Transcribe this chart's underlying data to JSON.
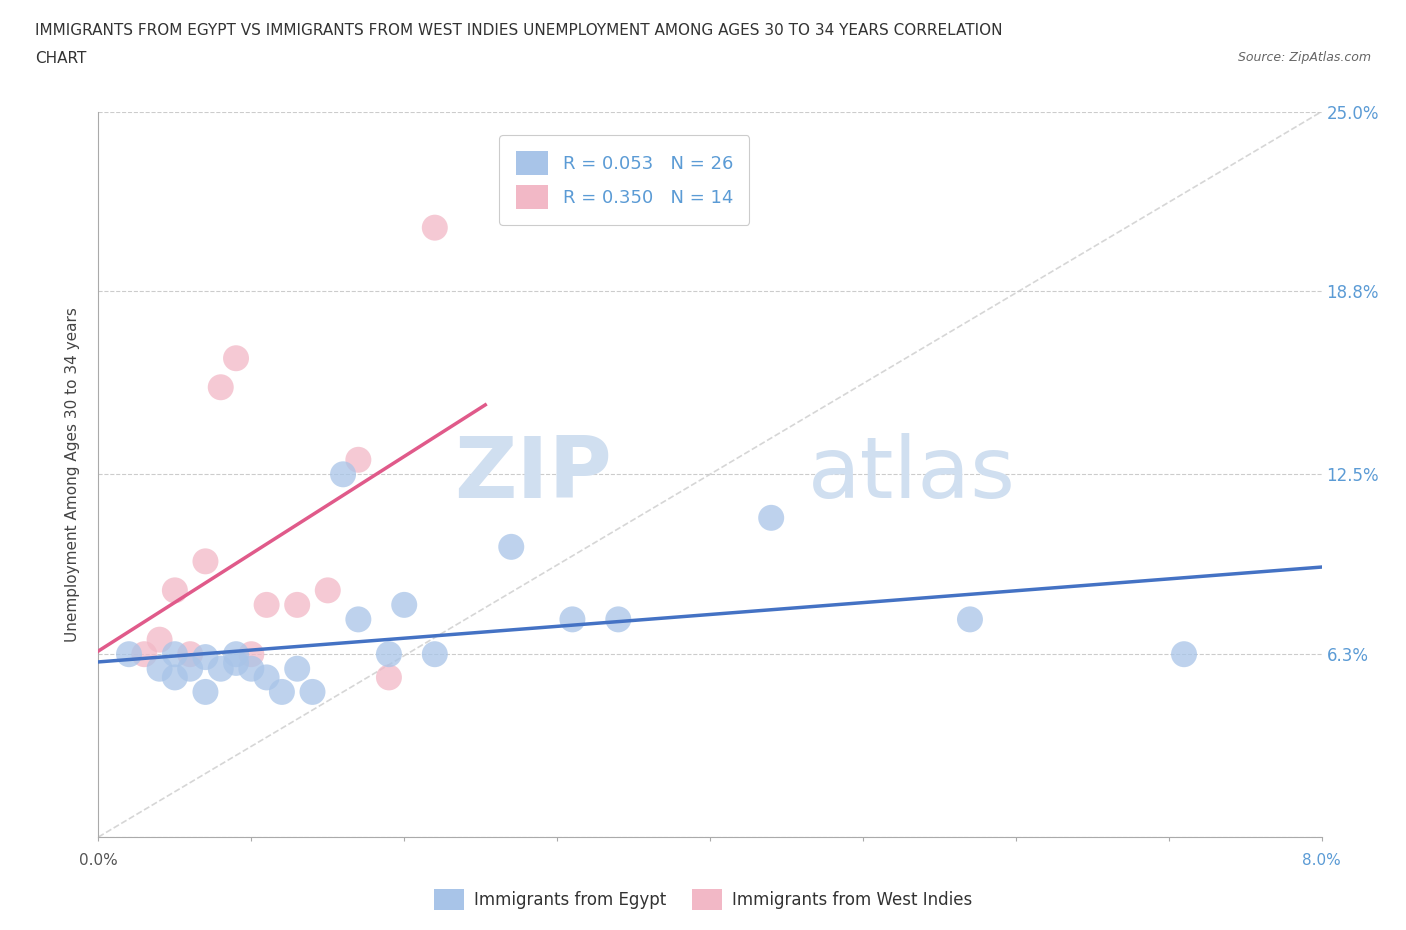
{
  "title_line1": "IMMIGRANTS FROM EGYPT VS IMMIGRANTS FROM WEST INDIES UNEMPLOYMENT AMONG AGES 30 TO 34 YEARS CORRELATION",
  "title_line2": "CHART",
  "source_text": "Source: ZipAtlas.com",
  "ylabel": "Unemployment Among Ages 30 to 34 years",
  "xmin": 0.0,
  "xmax": 0.08,
  "ymin": 0.0,
  "ymax": 0.25,
  "yticks": [
    0.0,
    0.063,
    0.125,
    0.188,
    0.25
  ],
  "ytick_labels_right": [
    "",
    "6.3%",
    "12.5%",
    "18.8%",
    "25.0%"
  ],
  "xtick_left_label": "0.0%",
  "xtick_right_label": "8.0%",
  "egypt_color": "#a8c4e8",
  "wi_color": "#f2b8c6",
  "egypt_R": 0.053,
  "egypt_N": 26,
  "wi_R": 0.35,
  "wi_N": 14,
  "egypt_trend_color": "#4472c4",
  "wi_trend_color": "#e05a8a",
  "diagonal_color": "#cccccc",
  "watermark_zip": "ZIP",
  "watermark_atlas": "atlas",
  "right_tick_color": "#5b9bd5",
  "egypt_x": [
    0.002,
    0.004,
    0.005,
    0.005,
    0.006,
    0.007,
    0.007,
    0.008,
    0.009,
    0.009,
    0.01,
    0.011,
    0.012,
    0.013,
    0.014,
    0.016,
    0.017,
    0.019,
    0.02,
    0.022,
    0.027,
    0.031,
    0.034,
    0.044,
    0.057,
    0.071
  ],
  "egypt_y": [
    0.063,
    0.058,
    0.055,
    0.063,
    0.058,
    0.05,
    0.062,
    0.058,
    0.063,
    0.06,
    0.058,
    0.055,
    0.05,
    0.058,
    0.05,
    0.125,
    0.075,
    0.063,
    0.08,
    0.063,
    0.1,
    0.075,
    0.075,
    0.11,
    0.075,
    0.063
  ],
  "wi_x": [
    0.003,
    0.004,
    0.005,
    0.006,
    0.007,
    0.008,
    0.009,
    0.01,
    0.011,
    0.013,
    0.015,
    0.017,
    0.019,
    0.022
  ],
  "wi_y": [
    0.063,
    0.068,
    0.085,
    0.063,
    0.095,
    0.155,
    0.165,
    0.063,
    0.08,
    0.08,
    0.085,
    0.13,
    0.055,
    0.21
  ]
}
